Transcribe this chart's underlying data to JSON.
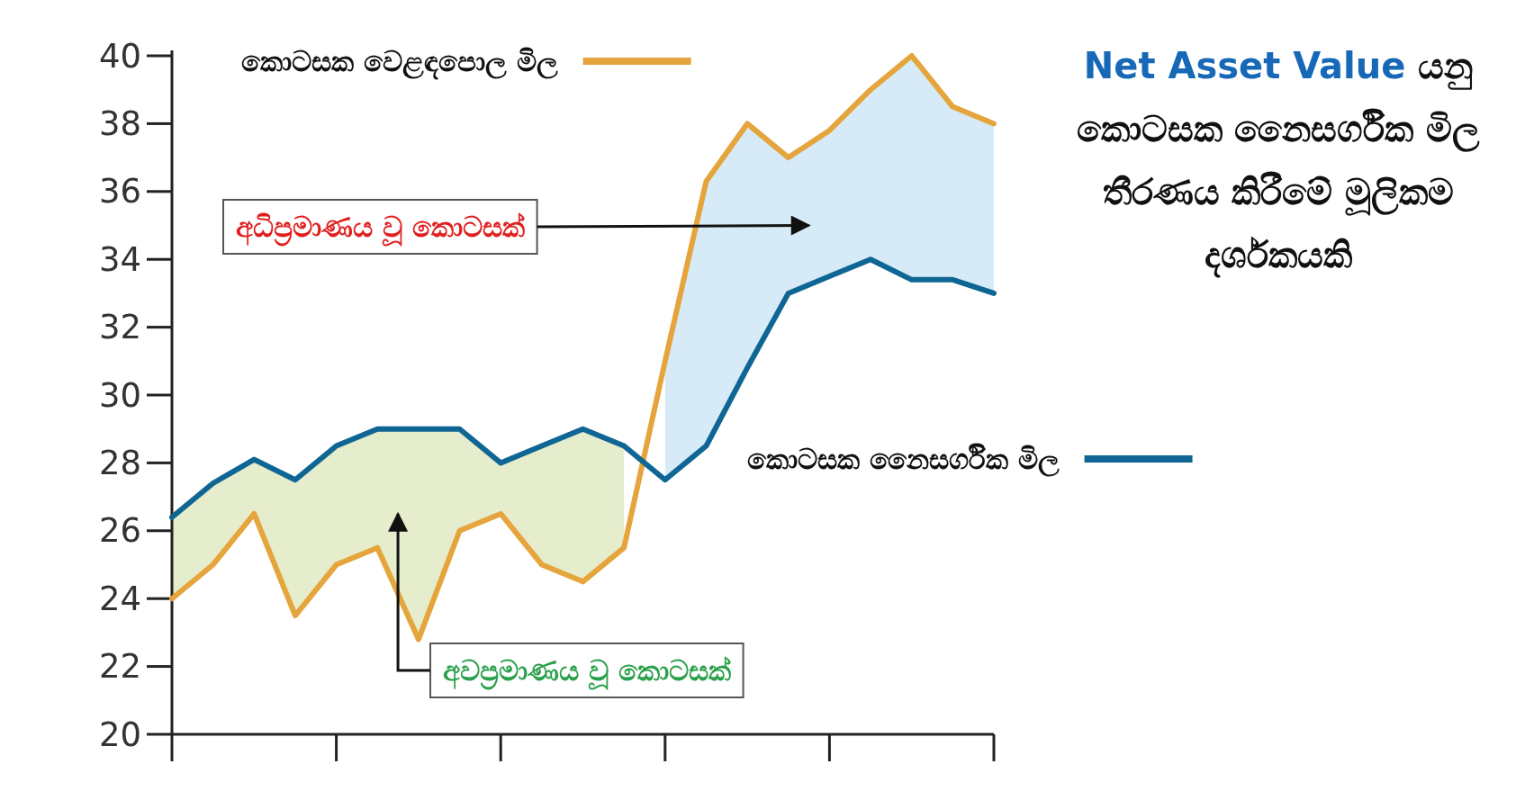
{
  "chart_data": {
    "type": "line",
    "categories": [
      null,
      null,
      null,
      null,
      null,
      null,
      null,
      null,
      null,
      null,
      null,
      null,
      null,
      null,
      null,
      null,
      null,
      null,
      null,
      null,
      null
    ],
    "series": [
      {
        "name": "කොටසක වෙළඳපොල මිල",
        "color": "#e5a53c",
        "values": [
          24,
          25,
          26.5,
          23.5,
          25,
          25.5,
          22.8,
          26,
          26.5,
          25,
          24.5,
          25.5,
          31,
          36.3,
          38,
          37,
          37.8,
          39,
          40,
          38.5,
          38
        ],
        "lower": [
          null,
          null,
          null,
          null,
          null,
          null,
          null,
          null,
          null,
          null,
          null,
          null,
          27.5,
          28.5,
          30.8,
          33,
          33.5,
          34,
          33.4,
          33.4,
          33
        ],
        "upper": [
          null,
          null,
          null,
          null,
          null,
          null,
          null,
          null,
          null,
          null,
          null,
          null,
          31,
          36.3,
          38,
          37,
          37.8,
          39,
          40,
          38.5,
          38
        ]
      },
      {
        "name": "කොටසක නෛසර්ගික මිල",
        "color": "#0f6694",
        "values": [
          26.4,
          27.4,
          28.1,
          27.5,
          28.5,
          29,
          29,
          29,
          28,
          28.5,
          29,
          28.5,
          27.5,
          28.5,
          30.8,
          33,
          33.5,
          34,
          33.4,
          33.4,
          33
        ],
        "lower": [
          24,
          25,
          26.5,
          23.5,
          25,
          25.5,
          22.8,
          26,
          26.5,
          25,
          24.5,
          25.5,
          null,
          null,
          null,
          null,
          null,
          null,
          null,
          null,
          null
        ],
        "upper": [
          26.4,
          27.4,
          28.1,
          27.5,
          28.5,
          29,
          29,
          29,
          28,
          28.5,
          29,
          28.5,
          null,
          null,
          null,
          null,
          null,
          null,
          null,
          null,
          null
        ]
      }
    ],
    "ylim": [
      20,
      40
    ],
    "yticks": [
      20,
      22,
      24,
      26,
      28,
      30,
      32,
      34,
      36,
      38,
      40
    ],
    "grid": false,
    "legend": "top",
    "annotations": [
      "අධිප්‍රමාණය වූ කොටසක්",
      "අවප්‍රමාණය වූ කොටසක්",
      "Net Asset Value",
      "යනු කොටසක නෛසර්ගික මිල තීරණය කිරීමේ මූලිකම දර්ශකයකි"
    ]
  }
}
